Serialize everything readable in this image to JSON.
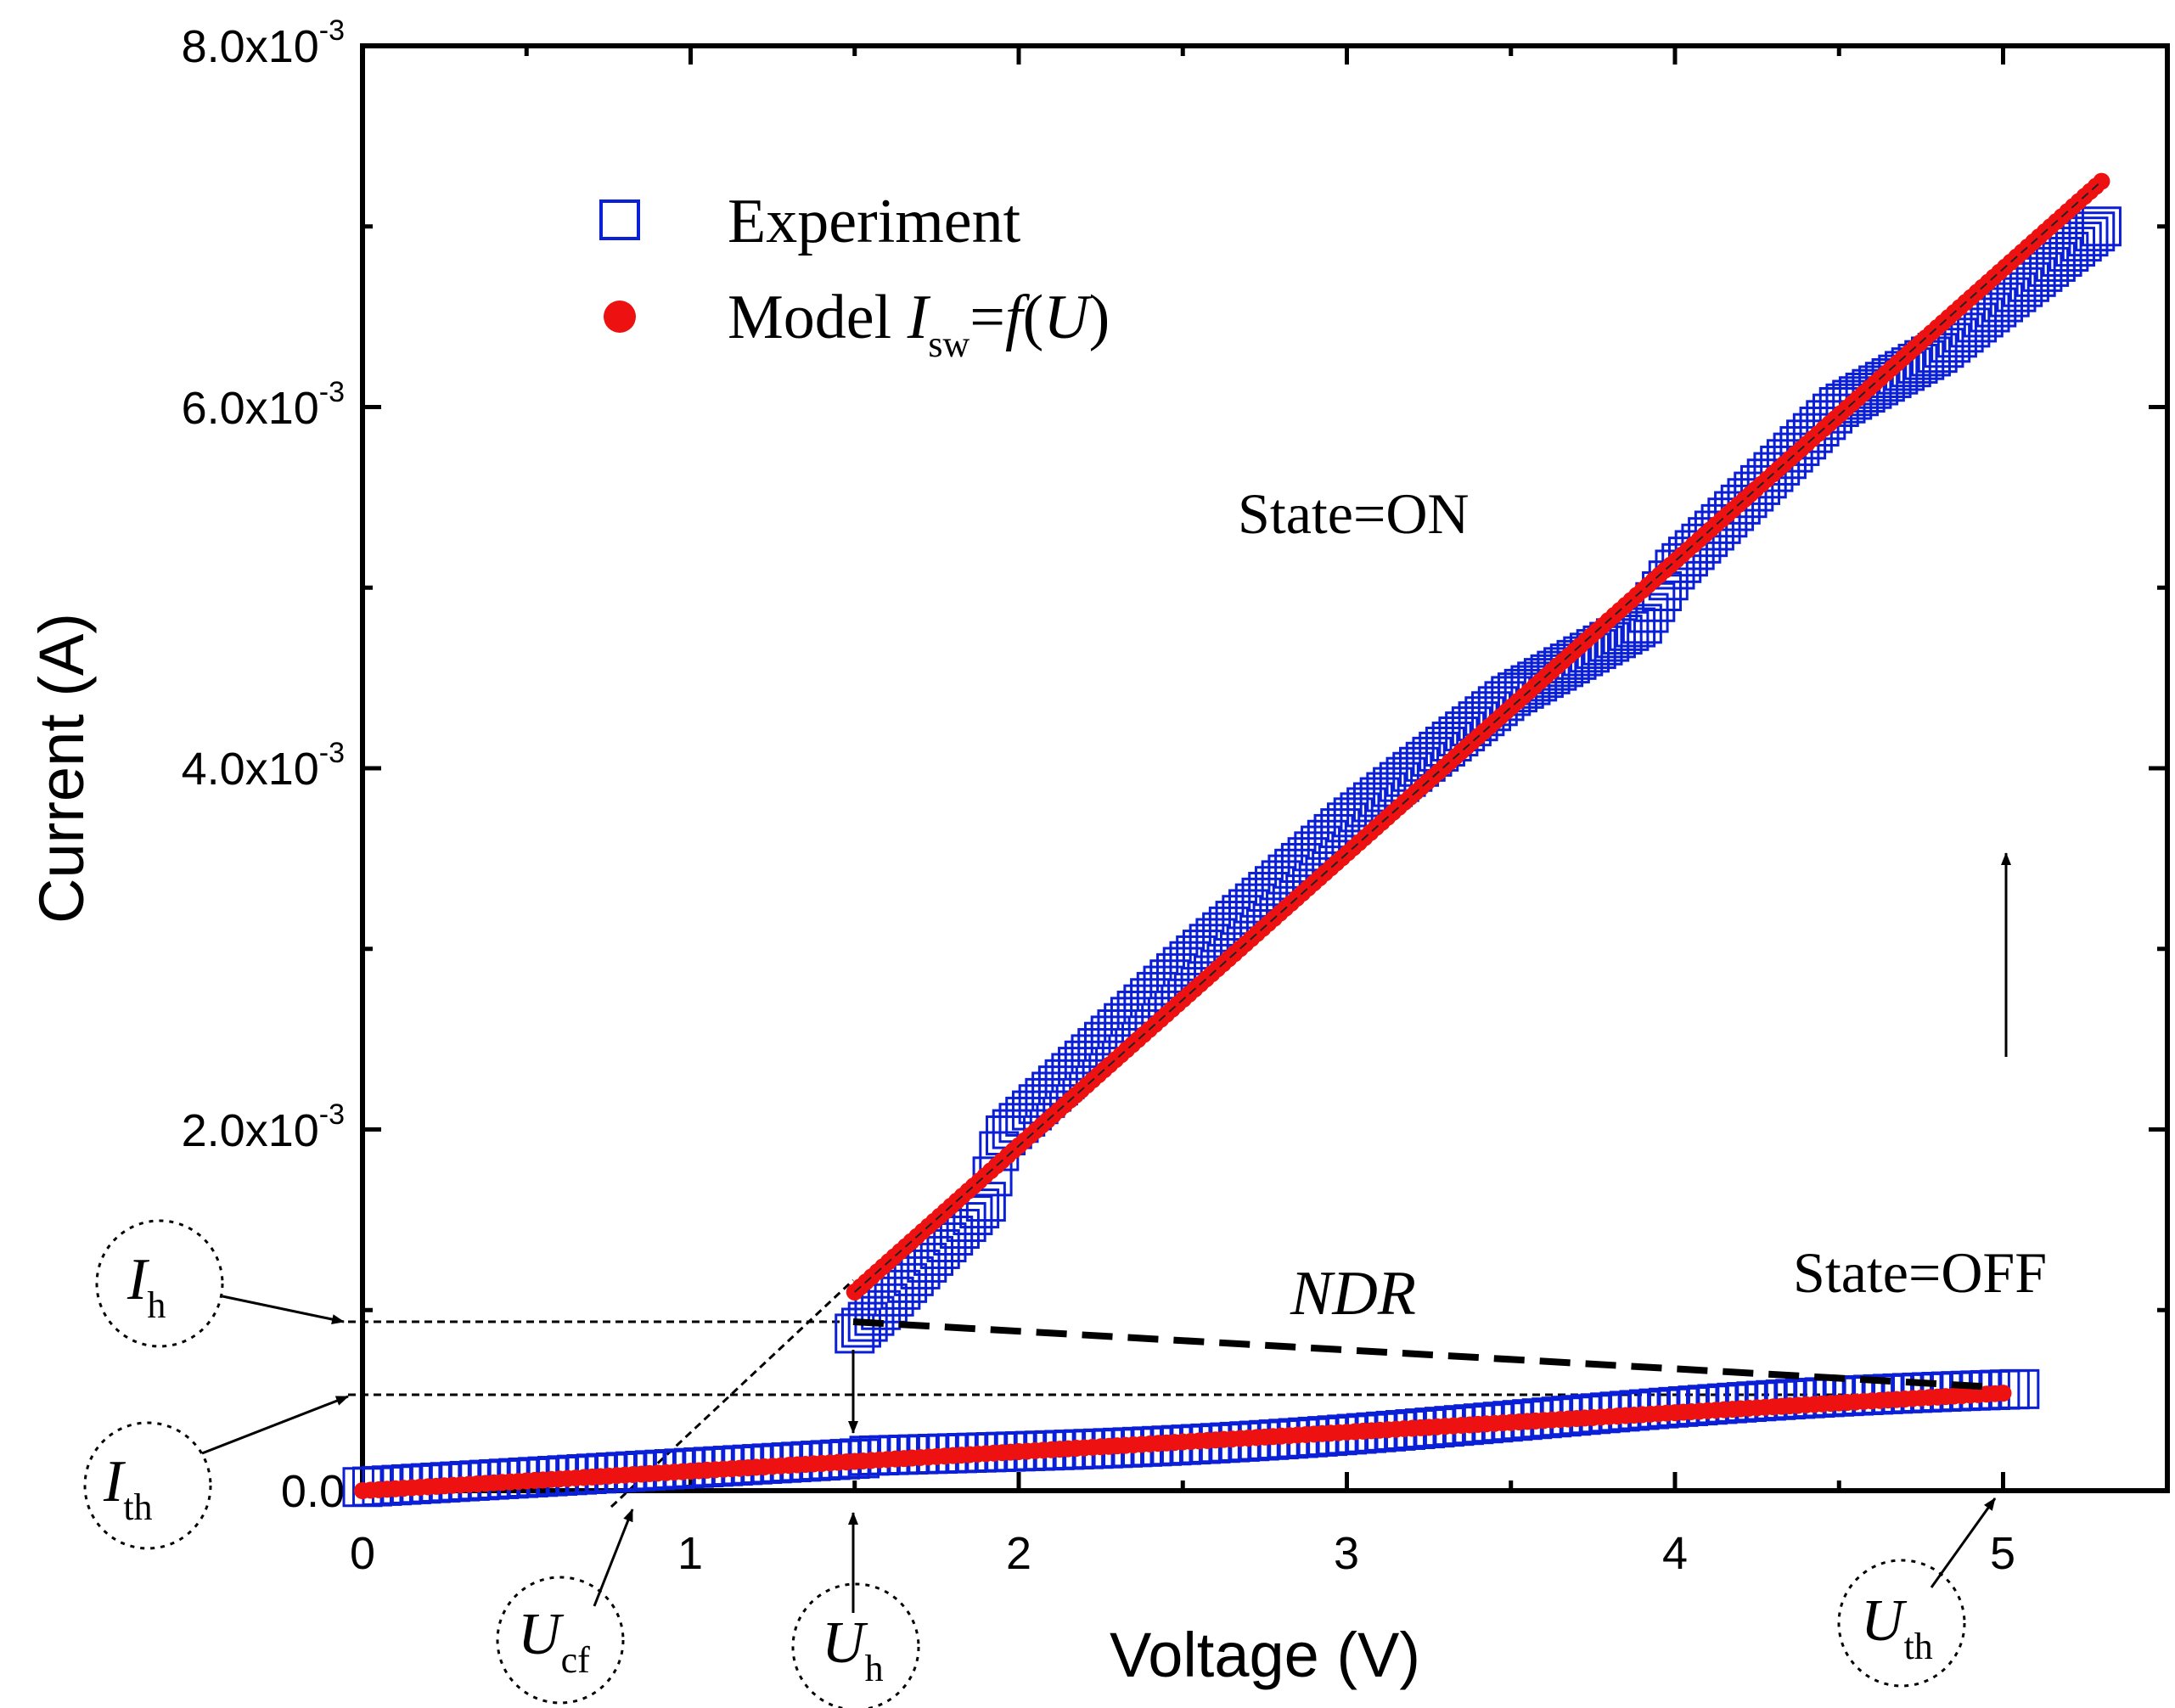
{
  "chart_data": {
    "type": "scatter",
    "xlabel": "Voltage (V)",
    "ylabel": "Current (A)",
    "xlim": [
      0,
      5.5
    ],
    "ylim": [
      0,
      0.008
    ],
    "x_ticks": [
      0,
      1,
      2,
      3,
      4,
      5
    ],
    "x_tick_labels": [
      "0",
      "1",
      "2",
      "3",
      "4",
      "5"
    ],
    "y_ticks": [
      0,
      0.002,
      0.004,
      0.006,
      0.008
    ],
    "y_tick_labels": [
      {
        "mantissa": "0.0",
        "exponent": ""
      },
      {
        "mantissa": "2.0x10",
        "exponent": "-3"
      },
      {
        "mantissa": "4.0x10",
        "exponent": "-3"
      },
      {
        "mantissa": "6.0x10",
        "exponent": "-3"
      },
      {
        "mantissa": "8.0x10",
        "exponent": "-3"
      }
    ],
    "legend": {
      "position": "top-left",
      "experiment": "Experiment",
      "model_prefix": "Model ",
      "model_I": "I",
      "model_sub": "sw",
      "model_eq": "=",
      "model_f": "f",
      "model_open": "(",
      "model_U": "U",
      "model_close": ")"
    },
    "series": [
      {
        "name": "Experiment",
        "marker": "open-square",
        "color": "#0a1fd6",
        "off_branch": {
          "x_start": 0.0,
          "y_start": 2e-05,
          "x_end": 5.05,
          "y_end": 0.00055
        },
        "on_branch": [
          [
            1.5,
            0.00087
          ],
          [
            1.58,
            0.001
          ],
          [
            1.9,
            0.0016
          ],
          [
            1.95,
            0.00195
          ],
          [
            2.5,
            0.0029
          ],
          [
            3.0,
            0.0037
          ],
          [
            3.5,
            0.0044
          ],
          [
            3.9,
            0.0048
          ],
          [
            4.0,
            0.0051
          ],
          [
            4.5,
            0.006
          ],
          [
            4.8,
            0.0063
          ],
          [
            5.3,
            0.007
          ]
        ]
      },
      {
        "name": "Model Isw=f(U)",
        "marker": "filled-circle",
        "color": "#ee1111",
        "off_branch": {
          "x_start": 0.0,
          "y_start": 0.0,
          "x_end": 5.0,
          "y_end": 0.00054
        },
        "on_branch": {
          "x_start": 1.5,
          "y_start": 0.0011,
          "x_end": 5.3,
          "y_end": 0.00725
        }
      }
    ],
    "reference_lines": {
      "Ih_value": 0.00093,
      "Ith_value": 0.00053,
      "Ucf_value": 0.82,
      "Uh_value": 1.5,
      "Uth_value": 5.0,
      "ndr_start": [
        1.5,
        0.00093
      ],
      "ndr_end": [
        5.0,
        0.00058
      ],
      "switch_arrow_x": 5.03,
      "switch_arrow_y_from": 0.0024,
      "switch_arrow_y_to": 0.0035,
      "down_arrow_from": 0.00088,
      "down_arrow_to": 0.00033
    },
    "annotations": {
      "state_on": "State=ON",
      "state_off": "State=OFF",
      "ndr": "NDR",
      "Ih": {
        "main": "I",
        "sub": "h"
      },
      "Ith": {
        "main": "I",
        "sub": "th"
      },
      "Ucf": {
        "main": "U",
        "sub": "cf"
      },
      "Uh": {
        "main": "U",
        "sub": "h"
      },
      "Uth": {
        "main": "U",
        "sub": "th"
      }
    }
  }
}
